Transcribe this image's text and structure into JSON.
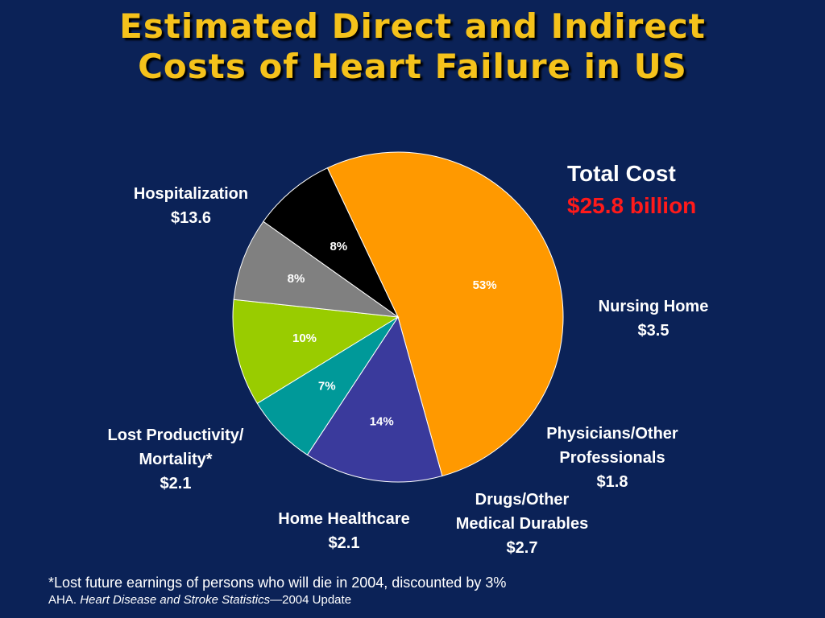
{
  "title": {
    "line1": "Estimated Direct and Indirect",
    "line2": "Costs of Heart Failure in US"
  },
  "total": {
    "label": "Total Cost",
    "value": "$25.8 billion"
  },
  "labels": {
    "hospitalization": {
      "name": "Hospitalization",
      "value": "$13.6"
    },
    "nursing_home": {
      "name": "Nursing Home",
      "value": "$3.5"
    },
    "physicians": {
      "line1": "Physicians/Other",
      "line2": "Professionals",
      "value": "$1.8"
    },
    "drugs": {
      "line1": "Drugs/Other",
      "line2": "Medical Durables",
      "value": "$2.7"
    },
    "home_healthcare": {
      "name": "Home Healthcare",
      "value": "$2.1"
    },
    "lost_productivity": {
      "line1": "Lost Productivity/",
      "line2": "Mortality*",
      "value": "$2.1"
    }
  },
  "footnote": {
    "line1": "*Lost future earnings of persons who will die in 2004, discounted by 3%",
    "source_prefix": "AHA. ",
    "source_title": "Heart Disease and Stroke Statistics",
    "source_suffix": "—2004 Update"
  },
  "colors": {
    "background": "#0b2257",
    "title": "#f5c21b",
    "total_value": "#ff1a1a"
  },
  "chart_data": {
    "type": "pie",
    "slices": [
      {
        "category": "Hospitalization",
        "value": 13.6,
        "percent_label": "53%",
        "color": "#ff9900"
      },
      {
        "category": "Nursing Home",
        "value": 3.5,
        "percent_label": "14%",
        "color": "#3a3a9c"
      },
      {
        "category": "Physicians/Other Professionals",
        "value": 1.8,
        "percent_label": "7%",
        "color": "#009999"
      },
      {
        "category": "Drugs/Other Medical Durables",
        "value": 2.7,
        "percent_label": "10%",
        "color": "#99cc00"
      },
      {
        "category": "Home Healthcare",
        "value": 2.1,
        "percent_label": "8%",
        "color": "#808080"
      },
      {
        "category": "Lost Productivity/Mortality*",
        "value": 2.1,
        "percent_label": "8%",
        "color": "#000000"
      }
    ]
  }
}
